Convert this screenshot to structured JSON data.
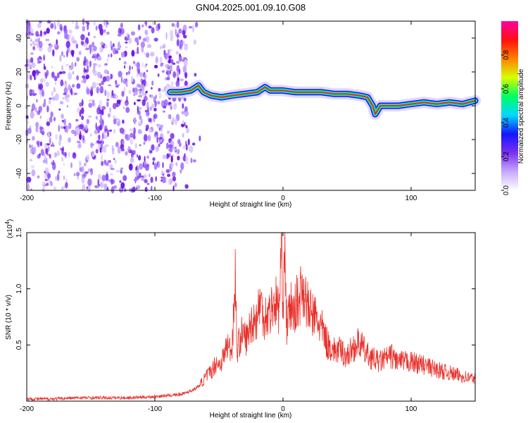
{
  "figure_title": "GN04.2025.001.09.10.G08",
  "colors": {
    "snr_line": "#e8302a",
    "ridge_core": "#ff2020",
    "noise": "#7a2ff0",
    "axis": "#000000"
  },
  "chart_data": [
    {
      "type": "heatmap",
      "xlabel": "Height of straight line (km)",
      "ylabel": "Frequency (Hz)",
      "xlim": [
        -200,
        150
      ],
      "ylim": [
        -50,
        50
      ],
      "xticks": [
        "-200",
        "-100",
        "0",
        "100"
      ],
      "xtick_values": [
        -200,
        -100,
        0,
        100
      ],
      "yticks": [
        "-40",
        "-20",
        "0",
        "20",
        "40"
      ],
      "ytick_values": [
        -40,
        -20,
        0,
        20,
        40
      ],
      "noise_region_x": [
        -200,
        -75
      ],
      "ridge": {
        "x": [
          -88,
          -80,
          -72,
          -66,
          -62,
          -56,
          -48,
          -40,
          -30,
          -20,
          -14,
          -10,
          0,
          10,
          20,
          30,
          40,
          50,
          60,
          66,
          70,
          72,
          76,
          80,
          90,
          100,
          110,
          120,
          130,
          140,
          150
        ],
        "y": [
          8,
          8,
          9,
          12,
          8,
          6,
          5,
          6,
          7,
          8,
          11,
          9,
          9,
          8,
          8,
          8,
          7,
          7,
          6,
          5,
          0,
          -5,
          0,
          0,
          0,
          1,
          2,
          1,
          2,
          1,
          3
        ]
      },
      "colorbar": {
        "label": "Normalized spectral amplitude",
        "range": [
          0,
          1
        ],
        "ticks": [
          "0.0",
          "0.2",
          "0.4",
          "0.6",
          "0.8"
        ],
        "tick_values": [
          0,
          0.2,
          0.4,
          0.6,
          0.8
        ],
        "colormap": [
          "#ffffff",
          "#c8a8ff",
          "#7a2ff0",
          "#1414ff",
          "#00d8ff",
          "#00ff60",
          "#d8ff00",
          "#ff8000",
          "#ff1010",
          "#ff00a0"
        ]
      }
    },
    {
      "type": "line",
      "xlabel": "Height of straight line (km)",
      "ylabel": "SNR (10 * v/v)",
      "multiplier_label": "(x10",
      "multiplier_exp": "4",
      "xlim": [
        -200,
        150
      ],
      "ylim": [
        0,
        1.5
      ],
      "xticks": [
        "-200",
        "-100",
        "0",
        "100"
      ],
      "xtick_values": [
        -200,
        -100,
        0,
        100
      ],
      "yticks": [
        "0.5",
        "1.0",
        "1.5"
      ],
      "ytick_values": [
        0.5,
        1.0,
        1.5
      ],
      "series": [
        {
          "x": [
            -200,
            -180,
            -160,
            -140,
            -120,
            -100,
            -90,
            -80,
            -75,
            -70,
            -65,
            -60,
            -55,
            -52,
            -50,
            -46,
            -44,
            -40,
            -37,
            -36,
            -35,
            -32,
            -28,
            -25,
            -20,
            -18,
            -15,
            -10,
            -6,
            -3,
            -1,
            0,
            1,
            3,
            6,
            9,
            10,
            12,
            15,
            17,
            20,
            25,
            30,
            35,
            40,
            45,
            50,
            55,
            60,
            65,
            70,
            75,
            80,
            85,
            90,
            100,
            110,
            120,
            130,
            140,
            150
          ],
          "values": [
            0.02,
            0.02,
            0.03,
            0.03,
            0.03,
            0.04,
            0.05,
            0.06,
            0.08,
            0.1,
            0.14,
            0.22,
            0.28,
            0.35,
            0.32,
            0.4,
            0.5,
            0.45,
            1.15,
            0.4,
            0.5,
            0.6,
            0.55,
            0.7,
            0.75,
            0.9,
            0.75,
            0.8,
            0.9,
            0.8,
            1.5,
            0.85,
            1.45,
            0.65,
            0.85,
            0.75,
            0.9,
            0.85,
            1.05,
            0.95,
            0.8,
            0.75,
            0.65,
            0.5,
            0.45,
            0.45,
            0.4,
            0.48,
            0.52,
            0.42,
            0.38,
            0.35,
            0.38,
            0.4,
            0.35,
            0.35,
            0.32,
            0.28,
            0.25,
            0.22,
            0.2
          ]
        }
      ]
    }
  ]
}
